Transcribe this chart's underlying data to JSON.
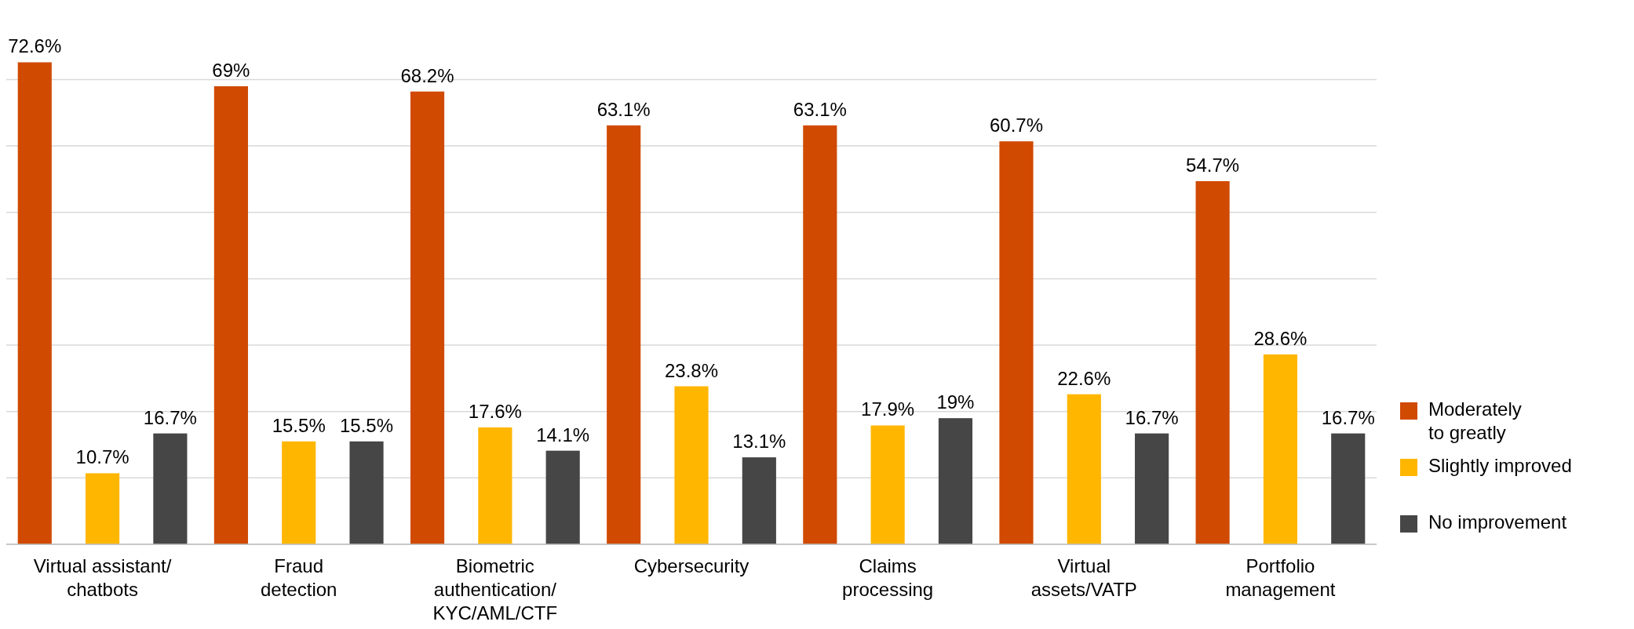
{
  "chart_data": {
    "type": "bar",
    "categories": [
      "Virtual assistant/\nchatbots",
      "Fraud\ndetection",
      "Biometric\nauthentication/\nKYC/AML/CTF",
      "Cybersecurity",
      "Claims\nprocessing",
      "Virtual\nassets/VATP",
      "Portfolio\nmanagement"
    ],
    "series": [
      {
        "name": "Moderately\nto greatly",
        "color": "#d04a02",
        "values": [
          72.6,
          69,
          68.2,
          63.1,
          63.1,
          60.7,
          54.7
        ],
        "value_labels": [
          "72.6%",
          "69%",
          "68.2%",
          "63.1%",
          "63.1%",
          "60.7%",
          "54.7%"
        ]
      },
      {
        "name": "Slightly improved",
        "color": "#ffb600",
        "values": [
          10.7,
          15.5,
          17.6,
          23.8,
          17.9,
          22.6,
          28.6
        ],
        "value_labels": [
          "10.7%",
          "15.5%",
          "17.6%",
          "23.8%",
          "17.9%",
          "22.6%",
          "28.6%"
        ]
      },
      {
        "name": "No improvement",
        "color": "#464646",
        "values": [
          16.7,
          15.5,
          14.1,
          13.1,
          19,
          16.7,
          16.7
        ],
        "value_labels": [
          "16.7%",
          "15.5%",
          "14.1%",
          "13.1%",
          "19%",
          "16.7%",
          "16.7%"
        ]
      }
    ],
    "grid": "y",
    "legend": "right"
  }
}
